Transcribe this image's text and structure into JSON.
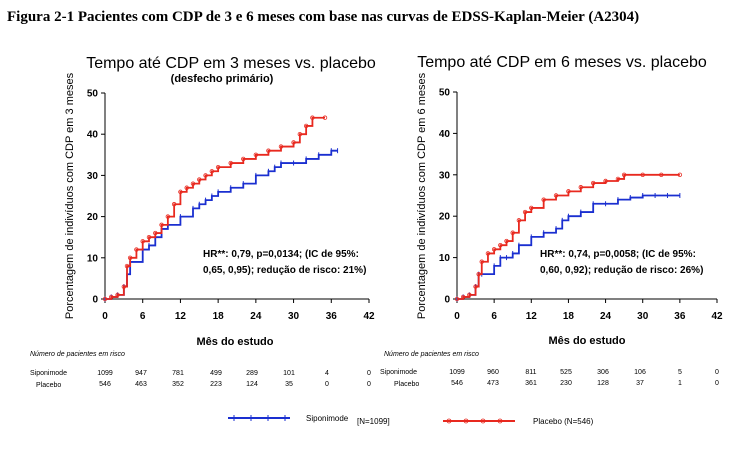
{
  "figure_title": "Figura 2-1 Pacientes com CDP de 3 e 6 meses com base nas curvas de EDSS-Kaplan-Meier (A2304)",
  "colors": {
    "siponimod": "#1a2fd0",
    "placebo": "#e8291f",
    "axis": "#000000"
  },
  "chart_data": [
    {
      "type": "line",
      "title": "Tempo até CDP em 3 meses vs. placebo",
      "subtitle": "(desfecho primário)",
      "xlabel": "Mês do estudo",
      "ylabel": "Porcentagem de indivíduos com CDP em 3 meses",
      "xlim": [
        0,
        42
      ],
      "ylim": [
        0,
        50
      ],
      "xticks": [
        0,
        6,
        12,
        18,
        24,
        30,
        36,
        42
      ],
      "yticks": [
        0,
        10,
        20,
        30,
        40,
        50
      ],
      "annotation_lines": [
        "HR**: 0,79, p=0,0134; (IC de 95%:",
        "0,65, 0,95); redução de risco: 21%)"
      ],
      "series": [
        {
          "name": "Siponimode",
          "color": "#1a2fd0",
          "x": [
            0,
            1,
            2,
            3,
            3.5,
            4,
            6,
            7,
            8,
            9,
            10,
            12,
            14,
            15,
            16,
            17,
            18,
            20,
            22,
            24,
            26,
            27,
            28,
            30,
            32,
            34,
            36,
            37
          ],
          "y": [
            0,
            0.5,
            1,
            3,
            6,
            9,
            12,
            13,
            15,
            17,
            18,
            20,
            22,
            23,
            24,
            25,
            26,
            27,
            28,
            30,
            31,
            32,
            33,
            33,
            34,
            35,
            36,
            36
          ]
        },
        {
          "name": "Placebo",
          "color": "#e8291f",
          "x": [
            0,
            1,
            2,
            3,
            3.5,
            4,
            5,
            6,
            7,
            8,
            9,
            10,
            11,
            12,
            13,
            14,
            15,
            16,
            17,
            18,
            20,
            22,
            24,
            26,
            28,
            30,
            31,
            32,
            33,
            35
          ],
          "y": [
            0,
            0.5,
            1,
            3,
            8,
            10,
            12,
            14,
            15,
            16,
            18,
            20,
            23,
            26,
            27,
            28,
            29,
            30,
            31,
            32,
            33,
            34,
            35,
            36,
            37,
            38,
            40,
            42,
            44,
            44
          ]
        }
      ],
      "risk_table": {
        "header": "Número de pacientes em risco",
        "rows": [
          {
            "label": "Siponimode",
            "values": [
              "1099",
              "947",
              "781",
              "499",
              "289",
              "101",
              "4",
              "0"
            ]
          },
          {
            "label": "Placebo",
            "values": [
              "546",
              "463",
              "352",
              "223",
              "124",
              "35",
              "0",
              "0"
            ]
          }
        ]
      }
    },
    {
      "type": "line",
      "title": "Tempo até CDP em 6 meses vs. placebo",
      "subtitle": "",
      "xlabel": "Mês do estudo",
      "ylabel": "Porcentagem de indivíduos com CDP em 6 meses",
      "xlim": [
        0,
        42
      ],
      "ylim": [
        0,
        50
      ],
      "xticks": [
        0,
        6,
        12,
        18,
        24,
        30,
        36,
        42
      ],
      "yticks": [
        0,
        10,
        20,
        30,
        40,
        50
      ],
      "annotation_lines": [
        "HR**: 0,74, p=0,0058; (IC de 95%:",
        "0,60, 0,92); redução de risco: 26%)"
      ],
      "series": [
        {
          "name": "Siponimode",
          "color": "#1a2fd0",
          "x": [
            0,
            1,
            2,
            3,
            3.5,
            4,
            6,
            7,
            8,
            9,
            10,
            12,
            14,
            16,
            17,
            18,
            20,
            22,
            24,
            26,
            28,
            30,
            32,
            34,
            36
          ],
          "y": [
            0,
            0.5,
            1,
            3,
            6,
            6,
            8,
            10,
            10,
            11,
            13,
            15,
            16,
            17,
            19,
            20,
            21,
            23,
            23,
            24,
            24.5,
            25,
            25,
            25,
            25
          ]
        },
        {
          "name": "Placebo",
          "color": "#e8291f",
          "x": [
            0,
            1,
            2,
            3,
            3.5,
            4,
            5,
            6,
            7,
            8,
            9,
            10,
            11,
            12,
            14,
            16,
            18,
            20,
            22,
            24,
            26,
            27,
            30,
            33,
            36
          ],
          "y": [
            0,
            0.5,
            1,
            3,
            6,
            9,
            11,
            12,
            13,
            14,
            16,
            19,
            21,
            22,
            24,
            25,
            26,
            27,
            28,
            28.5,
            29,
            30,
            30,
            30,
            30
          ]
        }
      ],
      "risk_table": {
        "header": "Número de pacientes em risco",
        "rows": [
          {
            "label": "Siponimode",
            "values": [
              "1099",
              "960",
              "811",
              "525",
              "306",
              "106",
              "5",
              "0"
            ]
          },
          {
            "label": "Placebo",
            "values": [
              "546",
              "473",
              "361",
              "230",
              "128",
              "37",
              "1",
              "0"
            ]
          }
        ]
      }
    }
  ],
  "legend": [
    {
      "label": "Siponimode",
      "count": "[N=1099]",
      "color": "#1a2fd0"
    },
    {
      "label": "Placebo (N=546)",
      "count": "",
      "color": "#e8291f"
    }
  ]
}
